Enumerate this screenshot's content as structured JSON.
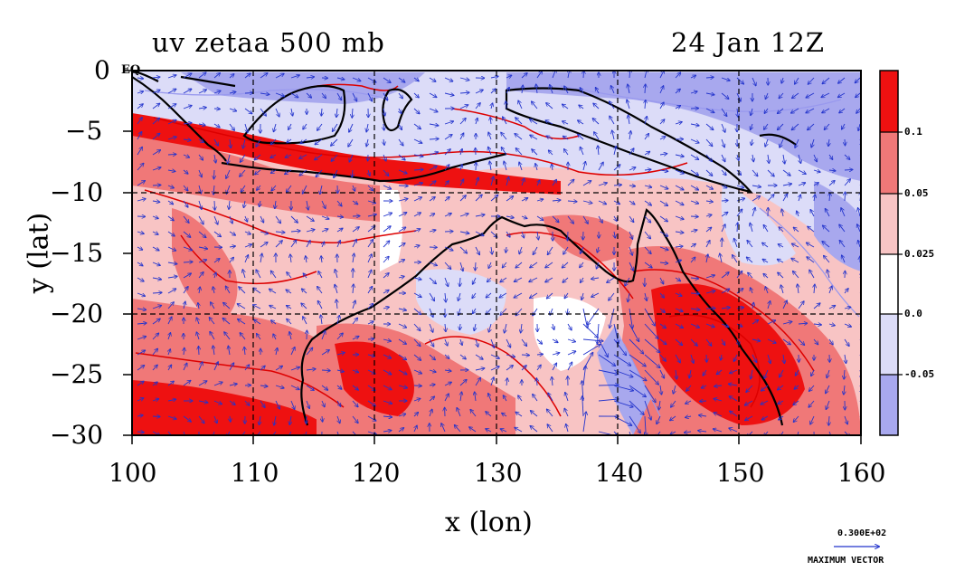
{
  "title": {
    "left": "uv zetaa 500 mb",
    "right": "24 Jan 12Z"
  },
  "axes": {
    "xlabel": "x (lon)",
    "ylabel": "y (lat)",
    "x_ticks": [
      "100",
      "110",
      "120",
      "130",
      "140",
      "150",
      "160"
    ],
    "y_ticks": [
      "0",
      "−5",
      "−10",
      "−15",
      "−20",
      "−25",
      "−30"
    ],
    "xlim": [
      100,
      160
    ],
    "ylim": [
      -30,
      0
    ],
    "eq_label": "EQ"
  },
  "colorbar": {
    "labels": [
      "0.1",
      "0.05",
      "0.025",
      "0.0",
      "-0.05"
    ],
    "colors": [
      "#ee1111",
      "#f07878",
      "#f8c4c4",
      "#ffffff",
      "#dcdcf8",
      "#a8a8ee"
    ]
  },
  "max_vector": {
    "value": "0.300E+02",
    "label": "MAXIMUM VECTOR"
  },
  "colors": {
    "vector": "#2233cc",
    "coast": "#000000",
    "contour_pos": "#dd0000",
    "contour_neg": "#9999ee"
  }
}
